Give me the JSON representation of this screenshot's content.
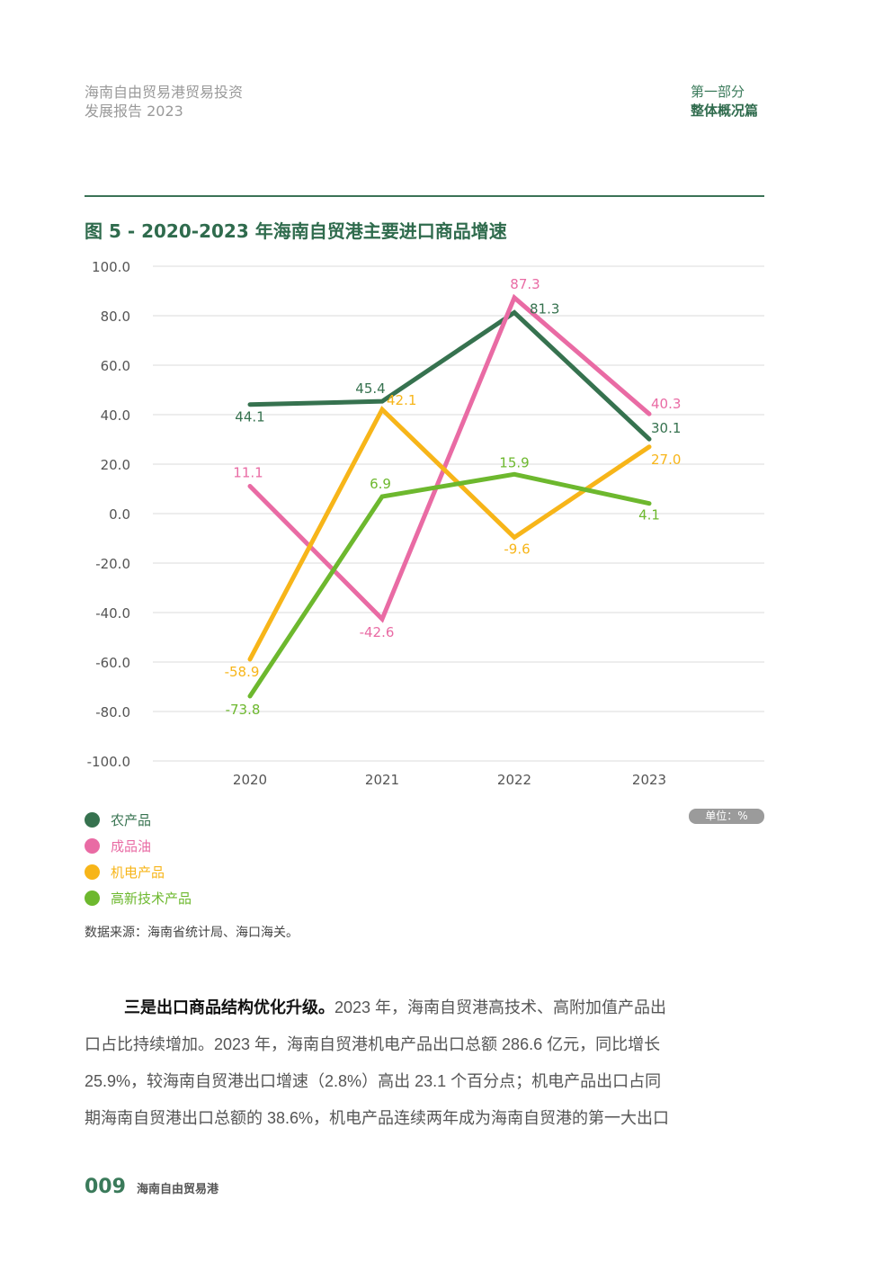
{
  "header": {
    "report_title_line1": "海南自由贸易港贸易投资",
    "report_title_line2": "发展报告 2023",
    "section_part": "第一部分",
    "section_name": "整体概况篇"
  },
  "figure": {
    "title": "图 5 - 2020-2023 年海南自贸港主要进口商品增速",
    "unit_badge": "单位：%",
    "source": "数据来源：海南省统计局、海口海关。"
  },
  "chart_data": {
    "type": "line",
    "title": "2020-2023 年海南自贸港主要进口商品增速",
    "xlabel": "",
    "ylabel": "",
    "unit": "%",
    "categories": [
      "2020",
      "2021",
      "2022",
      "2023"
    ],
    "ylim": [
      -100,
      100
    ],
    "yticks": [
      100,
      80,
      60,
      40,
      20,
      0,
      -20,
      -40,
      -60,
      -80,
      -100
    ],
    "ytick_labels": [
      "100.0",
      "80.0",
      "60.0",
      "40.0",
      "20.0",
      "0.0",
      "-20.0",
      "-40.0",
      "-60.0",
      "-80.0",
      "-100.0"
    ],
    "grid": true,
    "legend_position": "bottom-left",
    "series": [
      {
        "name": "农产品",
        "color": "#36724f",
        "values": [
          44.1,
          45.4,
          81.3,
          30.1
        ],
        "labels": [
          "44.1",
          "45.4",
          "81.3",
          "30.1"
        ]
      },
      {
        "name": "成品油",
        "color": "#e96ba4",
        "values": [
          11.1,
          -42.6,
          87.3,
          40.3
        ],
        "labels": [
          "11.1",
          "-42.6",
          "87.3",
          "40.3"
        ]
      },
      {
        "name": "机电产品",
        "color": "#f7b519",
        "values": [
          -58.9,
          42.1,
          -9.6,
          27.0
        ],
        "labels": [
          "-58.9",
          "42.1",
          "-9.6",
          "27.0"
        ]
      },
      {
        "name": "高新技术产品",
        "color": "#6db82e",
        "values": [
          -73.8,
          6.9,
          15.9,
          4.1
        ],
        "labels": [
          "-73.8",
          "6.9",
          "15.9",
          "4.1"
        ]
      }
    ]
  },
  "body_text": {
    "lead": "三是出口商品结构优化升级。",
    "line1_rest": "2023 年，海南自贸港高技术、高附加值产品出",
    "line2": "口占比持续增加。2023 年，海南自贸港机电产品出口总额 286.6 亿元，同比增长",
    "line3": "25.9%，较海南自贸港出口增速（2.8%）高出 23.1 个百分点；机电产品出口占同",
    "line4": "期海南自贸港出口总额的 38.6%，机电产品连续两年成为海南自贸港的第一大出口"
  },
  "footer": {
    "page_number": "009",
    "label": "海南自由贸易港"
  }
}
